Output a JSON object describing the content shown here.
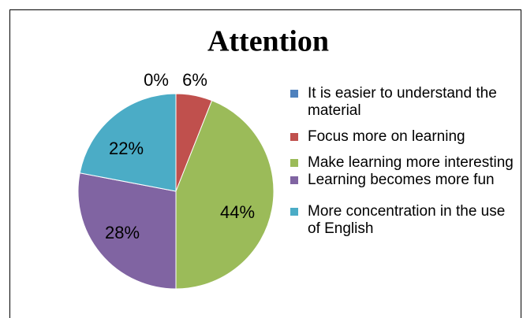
{
  "chart_data": {
    "type": "pie",
    "title": "Attention",
    "categories": [
      "It is easier to understand the material",
      "Focus more on learning",
      "Make learning more interesting",
      "Learning becomes more fun",
      "More concentration in the use of English"
    ],
    "values": [
      0,
      6,
      44,
      28,
      22
    ],
    "value_labels": [
      "0%",
      "6%",
      "44%",
      "28%",
      "22%"
    ],
    "colors": [
      "#4f81bd",
      "#c0504d",
      "#9bbb59",
      "#8064a2",
      "#4bacc6"
    ],
    "legend": "right"
  }
}
